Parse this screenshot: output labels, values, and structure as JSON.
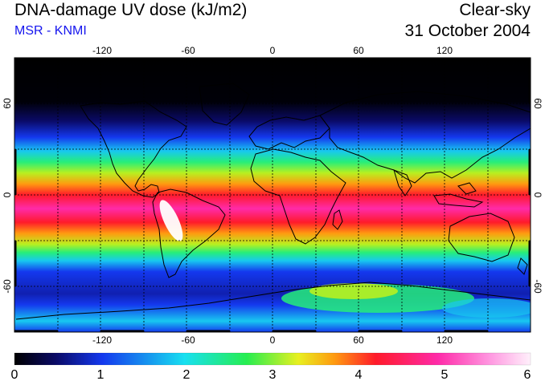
{
  "header": {
    "title": "DNA-damage UV dose (kJ/m2)",
    "source": "MSR - KNMI",
    "mode": "Clear-sky",
    "date": "31 October 2004"
  },
  "colors": {
    "source_text": "#1515ee",
    "scale": [
      "#000000",
      "#0a0a66",
      "#1438ee",
      "#18c8f0",
      "#26ee7a",
      "#b8f020",
      "#ff9a10",
      "#ff1a2a",
      "#ff2aa8",
      "#ff96e0",
      "#fff0fb"
    ]
  },
  "map": {
    "lon_ticks": [
      "-120",
      "-60",
      "0",
      "60",
      "120"
    ],
    "lat_ticks": [
      "60",
      "0",
      "-60"
    ],
    "lat_ticks_right": [
      "60",
      "0",
      "-60"
    ]
  },
  "colorbar": {
    "min": 0,
    "max": 6,
    "labels": [
      "0",
      "1",
      "2",
      "3",
      "4",
      "5",
      "6"
    ]
  }
}
